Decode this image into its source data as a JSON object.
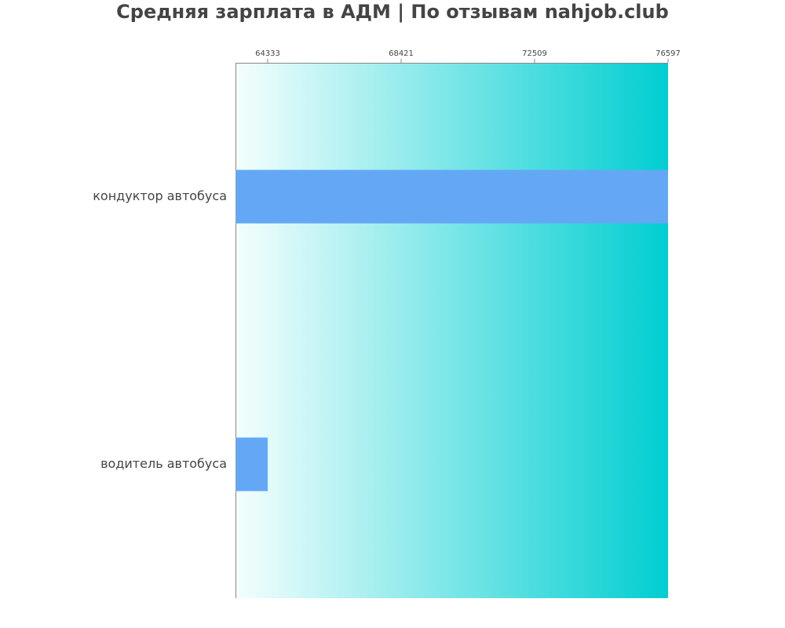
{
  "chart_data": {
    "type": "barh",
    "title": "Средняя зарплата в АДМ | По отзывам nahjob.club",
    "categories": [
      "кондуктор автобуса",
      "водитель автобуса"
    ],
    "values": [
      76597,
      64333
    ],
    "color": "#64a8f5",
    "xlim": [
      63347,
      76597
    ],
    "xticks": [
      64333,
      68421,
      72509,
      76597
    ]
  }
}
